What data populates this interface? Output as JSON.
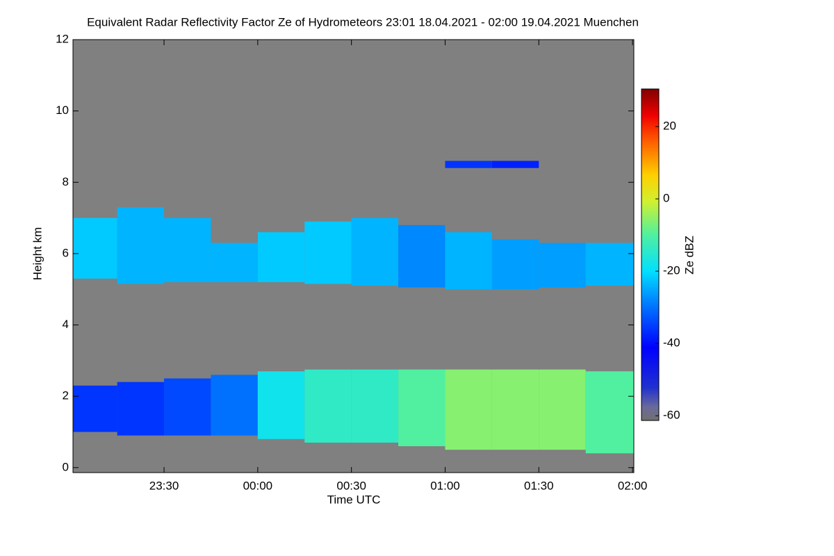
{
  "chart_data": {
    "type": "heatmap",
    "title": "Equivalent Radar Reflectivity Factor Ze of Hydrometeors   23:01 18.04.2021 - 02:00 19.04.2021 Muenchen",
    "xlabel": "Time UTC",
    "ylabel": "Height km",
    "xlim": [
      23.014,
      26.007
    ],
    "xticks": [
      {
        "value": 23.5,
        "label": "23:30"
      },
      {
        "value": 24,
        "label": "00:00"
      },
      {
        "value": 24.5,
        "label": "00:30"
      },
      {
        "value": 25,
        "label": "01:00"
      },
      {
        "value": 25.5,
        "label": "01:30"
      },
      {
        "value": 26,
        "label": "02:00"
      }
    ],
    "ylim": [
      -0.14,
      12
    ],
    "yticks": [
      0,
      2,
      4,
      6,
      8,
      10,
      12
    ],
    "background": "#808080",
    "colorbar": {
      "label": "Ze dBZ",
      "lim": [
        -61.3,
        30.4
      ],
      "ticks": [
        -60,
        -40,
        -20,
        0,
        20
      ]
    },
    "x": [
      23.125,
      23.375,
      23.625,
      23.875,
      24.125,
      24.375,
      24.625,
      24.875,
      25.125,
      25.375,
      25.625,
      25.875
    ],
    "layers": [
      {
        "top": [
          7.0,
          7.3,
          7.0,
          6.3,
          6.6,
          6.9,
          7.0,
          6.8,
          6.6,
          6.4,
          6.3,
          6.3
        ],
        "base": [
          5.3,
          5.15,
          5.2,
          5.2,
          5.2,
          5.15,
          5.1,
          5.05,
          5.0,
          5.0,
          5.05,
          5.1
        ],
        "values": [
          -22,
          -24,
          -24,
          -24,
          -22,
          -22,
          -24,
          -28,
          -24,
          -26,
          -26,
          -24
        ]
      },
      {
        "top": [
          2.3,
          2.4,
          2.5,
          2.6,
          2.7,
          2.75,
          2.75,
          2.75,
          2.75,
          2.75,
          2.75,
          2.7
        ],
        "base": [
          1.0,
          0.9,
          0.9,
          0.9,
          0.8,
          0.7,
          0.7,
          0.6,
          0.5,
          0.5,
          0.5,
          0.4
        ],
        "values": [
          -36,
          -36,
          -34,
          -30,
          -18,
          -14,
          -14,
          -10,
          -6,
          -6,
          -6,
          -10
        ]
      },
      {
        "top": [
          null,
          null,
          null,
          null,
          null,
          null,
          null,
          null,
          8.6,
          8.6,
          null,
          null
        ],
        "base": [
          null,
          null,
          null,
          null,
          null,
          null,
          null,
          null,
          8.4,
          8.4,
          null,
          null
        ],
        "values": [
          null,
          null,
          null,
          null,
          null,
          null,
          null,
          null,
          -36,
          -38,
          null,
          null
        ]
      }
    ]
  }
}
